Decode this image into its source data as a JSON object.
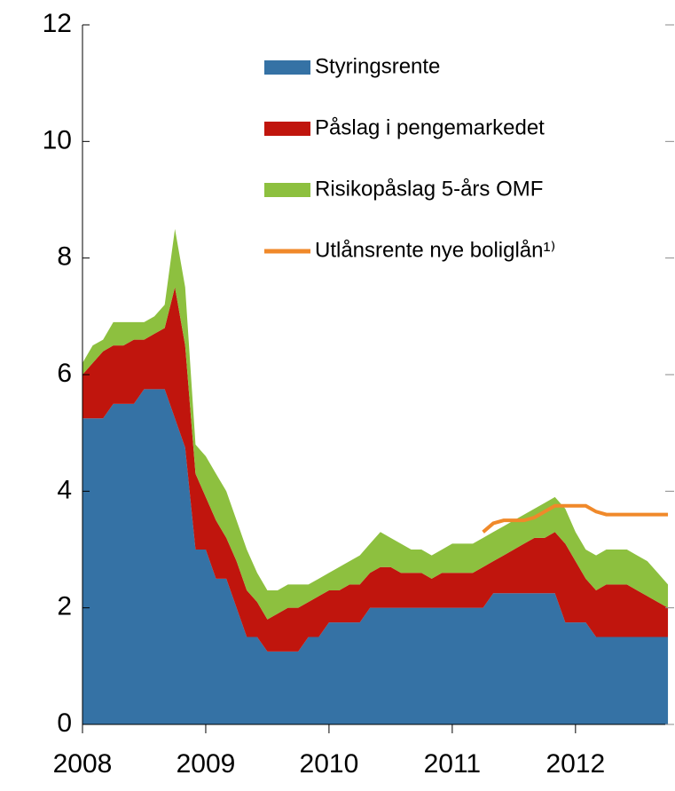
{
  "chart_data": {
    "type": "stacked_area",
    "x": [
      2008,
      2008.083,
      2008.167,
      2008.25,
      2008.333,
      2008.417,
      2008.5,
      2008.583,
      2008.667,
      2008.75,
      2008.833,
      2008.917,
      2009,
      2009.083,
      2009.167,
      2009.25,
      2009.333,
      2009.417,
      2009.5,
      2009.583,
      2009.667,
      2009.75,
      2009.833,
      2009.917,
      2010,
      2010.083,
      2010.167,
      2010.25,
      2010.333,
      2010.417,
      2010.5,
      2010.583,
      2010.667,
      2010.75,
      2010.833,
      2010.917,
      2011,
      2011.083,
      2011.167,
      2011.25,
      2011.333,
      2011.417,
      2011.5,
      2011.583,
      2011.667,
      2011.75,
      2011.833,
      2011.917,
      2012,
      2012.083,
      2012.167,
      2012.25,
      2012.333,
      2012.417,
      2012.5,
      2012.583,
      2012.667,
      2012.75
    ],
    "series": [
      {
        "name": "Styringsrente",
        "color": "#3572a5",
        "values": [
          5.25,
          5.25,
          5.25,
          5.5,
          5.5,
          5.5,
          5.75,
          5.75,
          5.75,
          5.25,
          4.75,
          3.0,
          3.0,
          2.5,
          2.5,
          2.0,
          1.5,
          1.5,
          1.25,
          1.25,
          1.25,
          1.25,
          1.5,
          1.5,
          1.75,
          1.75,
          1.75,
          1.75,
          2,
          2,
          2,
          2,
          2,
          2,
          2,
          2,
          2,
          2,
          2,
          2,
          2.25,
          2.25,
          2.25,
          2.25,
          2.25,
          2.25,
          2.25,
          1.75,
          1.75,
          1.75,
          1.5,
          1.5,
          1.5,
          1.5,
          1.5,
          1.5,
          1.5,
          1.5
        ]
      },
      {
        "name": "Påslag i pengemarkedet",
        "color": "#c0150d",
        "values": [
          0.75,
          0.95,
          1.15,
          1.0,
          1.0,
          1.1,
          0.85,
          0.95,
          1.05,
          2.25,
          1.75,
          1.3,
          0.9,
          1.0,
          0.7,
          0.8,
          0.8,
          0.6,
          0.55,
          0.65,
          0.75,
          0.75,
          0.6,
          0.7,
          0.55,
          0.55,
          0.65,
          0.65,
          0.6,
          0.7,
          0.7,
          0.6,
          0.6,
          0.6,
          0.5,
          0.6,
          0.6,
          0.6,
          0.6,
          0.7,
          0.55,
          0.65,
          0.75,
          0.85,
          0.95,
          0.95,
          1.05,
          1.35,
          1.05,
          0.75,
          0.8,
          0.9,
          0.9,
          0.9,
          0.8,
          0.7,
          0.6,
          0.5
        ]
      },
      {
        "name": "Risikopåslag 5-års OMF",
        "color": "#8dc03f",
        "values": [
          0.2,
          0.3,
          0.2,
          0.4,
          0.4,
          0.3,
          0.3,
          0.3,
          0.4,
          1.0,
          1.0,
          0.5,
          0.7,
          0.8,
          0.8,
          0.7,
          0.7,
          0.5,
          0.5,
          0.4,
          0.4,
          0.4,
          0.3,
          0.3,
          0.3,
          0.4,
          0.4,
          0.5,
          0.5,
          0.6,
          0.5,
          0.5,
          0.4,
          0.4,
          0.4,
          0.4,
          0.5,
          0.5,
          0.5,
          0.5,
          0.5,
          0.5,
          0.5,
          0.5,
          0.5,
          0.6,
          0.6,
          0.6,
          0.5,
          0.5,
          0.6,
          0.6,
          0.6,
          0.6,
          0.6,
          0.6,
          0.5,
          0.4
        ]
      },
      {
        "name": "Utlånsrente nye boliglån¹⁾",
        "color": "#f0892a",
        "line": true,
        "values": [
          null,
          null,
          null,
          null,
          null,
          null,
          null,
          null,
          null,
          null,
          null,
          null,
          null,
          null,
          null,
          null,
          null,
          null,
          null,
          null,
          null,
          null,
          null,
          null,
          null,
          null,
          null,
          null,
          null,
          null,
          null,
          null,
          null,
          null,
          null,
          null,
          null,
          null,
          null,
          3.3,
          3.45,
          3.5,
          3.5,
          3.5,
          3.55,
          3.65,
          3.75,
          3.75,
          3.75,
          3.75,
          3.65,
          3.6,
          3.6,
          3.6,
          3.6,
          3.6,
          3.6,
          3.6
        ]
      }
    ],
    "xlim": [
      2008,
      2012.8
    ],
    "xticks": [
      2008,
      2009,
      2010,
      2011,
      2012
    ],
    "ylim": [
      0,
      12
    ],
    "yticks": [
      0,
      2,
      4,
      6,
      8,
      10,
      12
    ]
  }
}
